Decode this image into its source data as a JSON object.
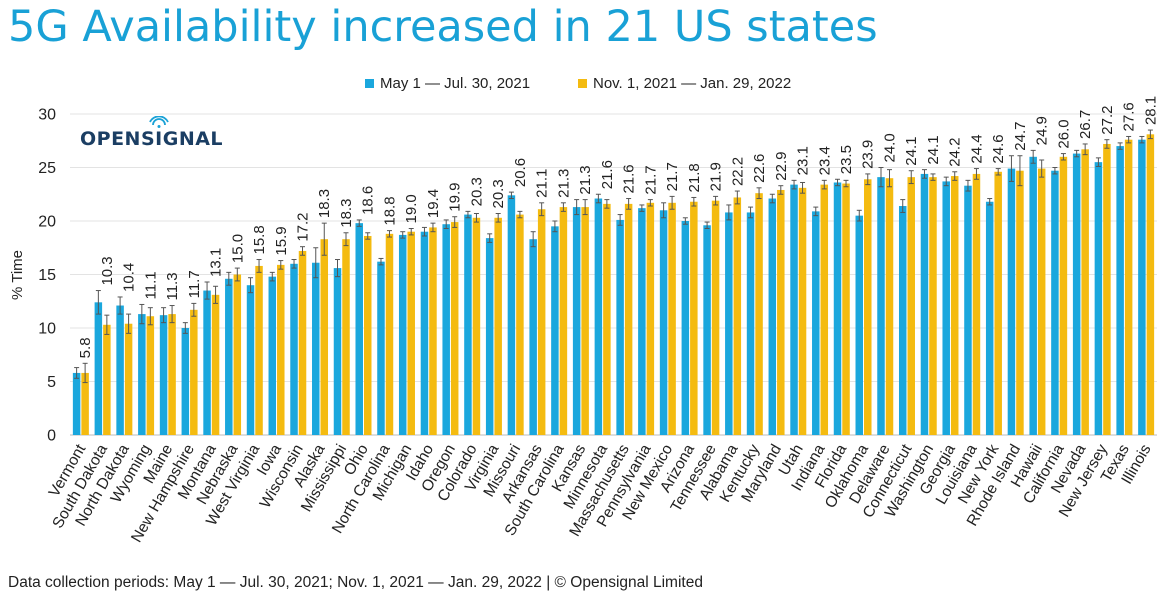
{
  "header": {
    "title": "5G Availability increased in 21 US states"
  },
  "logo": {
    "text": "OPENSIGNAL",
    "icon": "signal-icon"
  },
  "footer": {
    "text": "Data collection periods: May 1 — Jul. 30, 2021; Nov. 1, 2021 — Jan. 29, 2022 | © Opensignal Limited"
  },
  "colors": {
    "series1": "#1aa7dd",
    "series2": "#f4bb10",
    "grid": "#e3e3e3",
    "title": "#19a1d6"
  },
  "chart_data": {
    "type": "bar",
    "title": "5G Availability increased in 21 US states",
    "xlabel": "",
    "ylabel": "% Time",
    "ylim": [
      0,
      30
    ],
    "yticks": [
      0,
      5,
      10,
      15,
      20,
      25,
      30
    ],
    "grid": true,
    "legend": "top-center",
    "categories": [
      "Vermont",
      "South Dakota",
      "North Dakota",
      "Wyoming",
      "Maine",
      "New Hampshire",
      "Montana",
      "Nebraska",
      "West Virginia",
      "Iowa",
      "Wisconsin",
      "Alaska",
      "Mississippi",
      "Ohio",
      "North Carolina",
      "Michigan",
      "Idaho",
      "Oregon",
      "Colorado",
      "Virginia",
      "Missouri",
      "Arkansas",
      "South Carolina",
      "Kansas",
      "Minnesota",
      "Massachusetts",
      "Pennsylvania",
      "New Mexico",
      "Arizona",
      "Tennessee",
      "Alabama",
      "Kentucky",
      "Maryland",
      "Utah",
      "Indiana",
      "Florida",
      "Oklahoma",
      "Delaware",
      "Connecticut",
      "Washington",
      "Georgia",
      "Louisiana",
      "New York",
      "Rhode Island",
      "Hawaii",
      "California",
      "Nevada",
      "New Jersey",
      "Texas",
      "Illinois"
    ],
    "series": [
      {
        "name": "May 1 — Jul. 30, 2021",
        "values": [
          5.8,
          12.4,
          12.1,
          11.3,
          11.2,
          10.0,
          13.5,
          14.6,
          14.0,
          14.8,
          16.0,
          16.1,
          15.6,
          19.8,
          16.2,
          18.7,
          19.0,
          19.7,
          20.6,
          18.4,
          22.4,
          18.3,
          19.5,
          21.3,
          22.1,
          20.1,
          21.2,
          21.0,
          20.0,
          19.6,
          20.8,
          20.8,
          22.1,
          23.4,
          20.9,
          23.6,
          20.5,
          24.1,
          21.4,
          24.4,
          23.7,
          23.3,
          21.8,
          24.9,
          26.0,
          24.7,
          26.3,
          25.5,
          27.0,
          27.6
        ],
        "errors": [
          0.5,
          1.1,
          0.8,
          0.9,
          0.7,
          0.5,
          0.8,
          0.6,
          0.7,
          0.4,
          0.4,
          1.4,
          0.8,
          0.3,
          0.3,
          0.3,
          0.4,
          0.4,
          0.3,
          0.4,
          0.3,
          0.7,
          0.5,
          0.7,
          0.4,
          0.5,
          0.3,
          0.7,
          0.3,
          0.3,
          0.7,
          0.5,
          0.4,
          0.4,
          0.4,
          0.3,
          0.5,
          0.9,
          0.6,
          0.4,
          0.4,
          0.5,
          0.3,
          1.2,
          0.6,
          0.3,
          0.3,
          0.4,
          0.3,
          0.3
        ]
      },
      {
        "name": "Nov. 1, 2021 — Jan. 29, 2022",
        "values": [
          5.8,
          10.3,
          10.4,
          11.1,
          11.3,
          11.7,
          13.1,
          15.0,
          15.8,
          15.9,
          17.2,
          18.3,
          18.3,
          18.6,
          18.8,
          19.0,
          19.4,
          19.9,
          20.3,
          20.3,
          20.6,
          21.1,
          21.3,
          21.3,
          21.6,
          21.6,
          21.7,
          21.7,
          21.8,
          21.9,
          22.2,
          22.6,
          22.9,
          23.1,
          23.4,
          23.5,
          23.9,
          24.0,
          24.1,
          24.1,
          24.2,
          24.4,
          24.6,
          24.7,
          24.9,
          26.0,
          26.7,
          27.2,
          27.6,
          28.1
        ],
        "errors": [
          0.9,
          0.9,
          0.9,
          0.8,
          0.8,
          0.6,
          0.8,
          0.6,
          0.6,
          0.4,
          0.4,
          1.5,
          0.6,
          0.3,
          0.3,
          0.3,
          0.4,
          0.5,
          0.4,
          0.4,
          0.3,
          0.6,
          0.4,
          0.7,
          0.4,
          0.5,
          0.3,
          0.6,
          0.4,
          0.4,
          0.6,
          0.5,
          0.4,
          0.5,
          0.4,
          0.3,
          0.5,
          0.8,
          0.6,
          0.3,
          0.4,
          0.5,
          0.3,
          1.4,
          0.8,
          0.3,
          0.5,
          0.4,
          0.3,
          0.4
        ]
      }
    ],
    "data_labels": [
      "5.8",
      "10.3",
      "10.4",
      "11.1",
      "11.3",
      "11.7",
      "13.1",
      "15.0",
      "15.8",
      "15.9",
      "17.2",
      "18.3",
      "18.3",
      "18.6",
      "18.8",
      "19.0",
      "19.4",
      "19.9",
      "20.3",
      "20.3",
      "20.6",
      "21.1",
      "21.3",
      "21.3",
      "21.6",
      "21.6",
      "21.7",
      "21.7",
      "21.8",
      "21.9",
      "22.2",
      "22.6",
      "22.9",
      "23.1",
      "23.4",
      "23.5",
      "23.9",
      "24.0",
      "24.1",
      "24.1",
      "24.2",
      "24.4",
      "24.6",
      "24.7",
      "24.9",
      "26.0",
      "26.7",
      "27.2",
      "27.6",
      "28.1"
    ]
  }
}
